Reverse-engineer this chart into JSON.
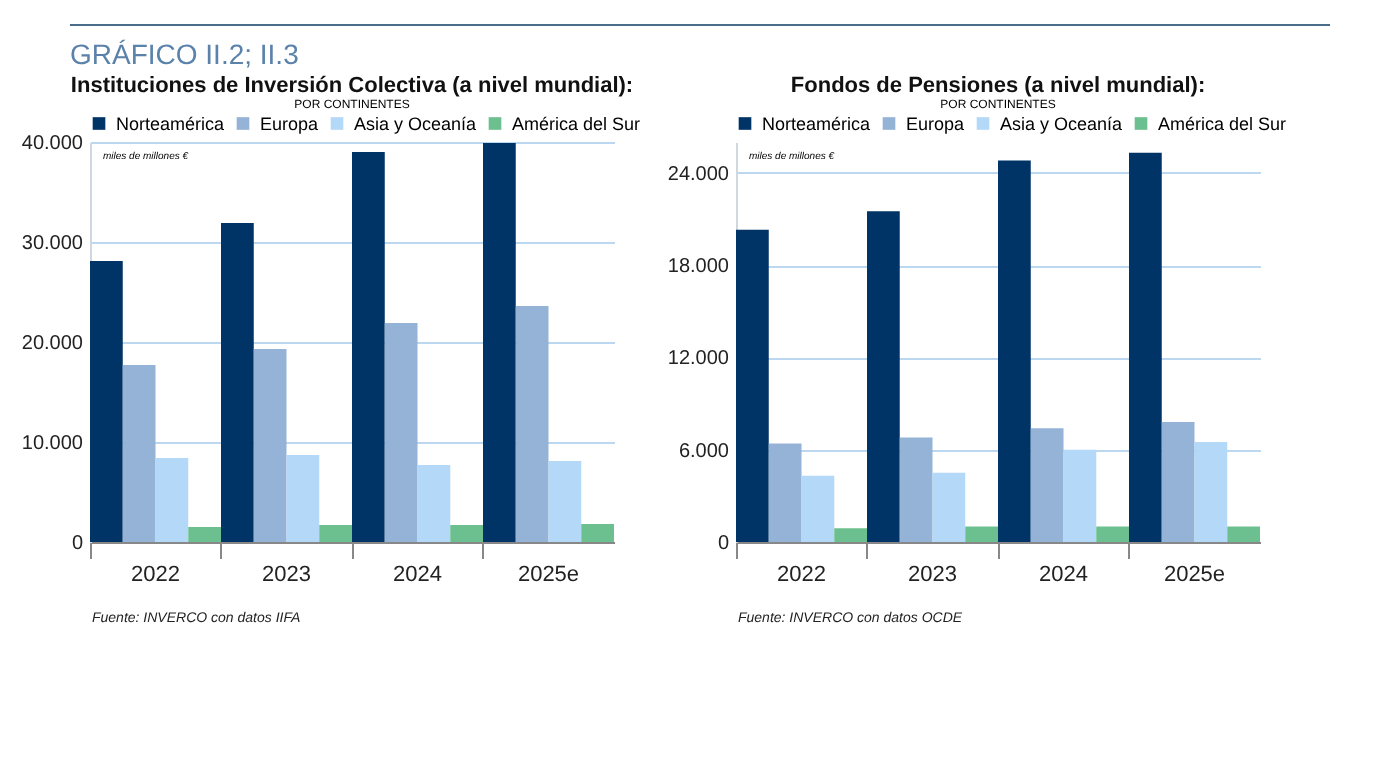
{
  "chart_data": [
    {
      "type": "bar",
      "title": "Instituciones de Inversión Colectiva (a nivel mundial):",
      "subtitle": "POR CONTINENTES",
      "ylabel": "miles de millones €",
      "categories": [
        "2022",
        "2023",
        "2024",
        "2025e"
      ],
      "series": [
        {
          "name": "Norteamérica",
          "color": "#003366",
          "values": [
            28100,
            31900,
            39000,
            39900
          ]
        },
        {
          "name": "Europa",
          "color": "#94b3d6",
          "values": [
            17700,
            19300,
            21900,
            23600
          ]
        },
        {
          "name": "Asia y Oceanía",
          "color": "#b4d8f8",
          "values": [
            8400,
            8700,
            7700,
            8100
          ]
        },
        {
          "name": "América del Sur",
          "color": "#6cbf8e",
          "values": [
            1500,
            1700,
            1700,
            1800
          ]
        }
      ],
      "ylim": [
        0,
        40000
      ],
      "yticks": [
        0,
        {
          "value": 10000,
          "label": "10.000"
        },
        {
          "value": 20000,
          "label": "20.000"
        },
        {
          "value": 30000,
          "label": "30.000"
        },
        {
          "value": 40000,
          "label": "40.000"
        }
      ],
      "grid": "y",
      "legend": "top",
      "annotations": [
        "GRÁFICO II.2; II.3",
        "Fuente: INVERCO con datos IIFA"
      ]
    },
    {
      "type": "bar",
      "title": "Fondos de Pensiones (a nivel mundial):",
      "subtitle": "POR CONTINENTES",
      "ylabel": "miles de millones €",
      "categories": [
        "2022",
        "2023",
        "2024",
        "2025e"
      ],
      "series": [
        {
          "name": "Norteamérica",
          "color": "#003366",
          "values": [
            20300,
            21500,
            24800,
            25300
          ]
        },
        {
          "name": "Europa",
          "color": "#94b3d6",
          "values": [
            6400,
            6800,
            7400,
            7800
          ]
        },
        {
          "name": "Asia y Oceanía",
          "color": "#b4d8f8",
          "values": [
            4300,
            4500,
            6000,
            6500
          ]
        },
        {
          "name": "América del Sur",
          "color": "#6cbf8e",
          "values": [
            900,
            1000,
            1000,
            1000
          ]
        }
      ],
      "ylim": [
        0,
        26000
      ],
      "yticks": [
        0,
        {
          "value": 6000,
          "label": "6.000"
        },
        {
          "value": 12000,
          "label": "12.000"
        },
        {
          "value": 18000,
          "label": "18.000"
        },
        {
          "value": 24000,
          "label": "24.000"
        }
      ],
      "grid": "y",
      "legend": "top",
      "annotations": [
        "Fuente: INVERCO con datos OCDE"
      ]
    }
  ]
}
